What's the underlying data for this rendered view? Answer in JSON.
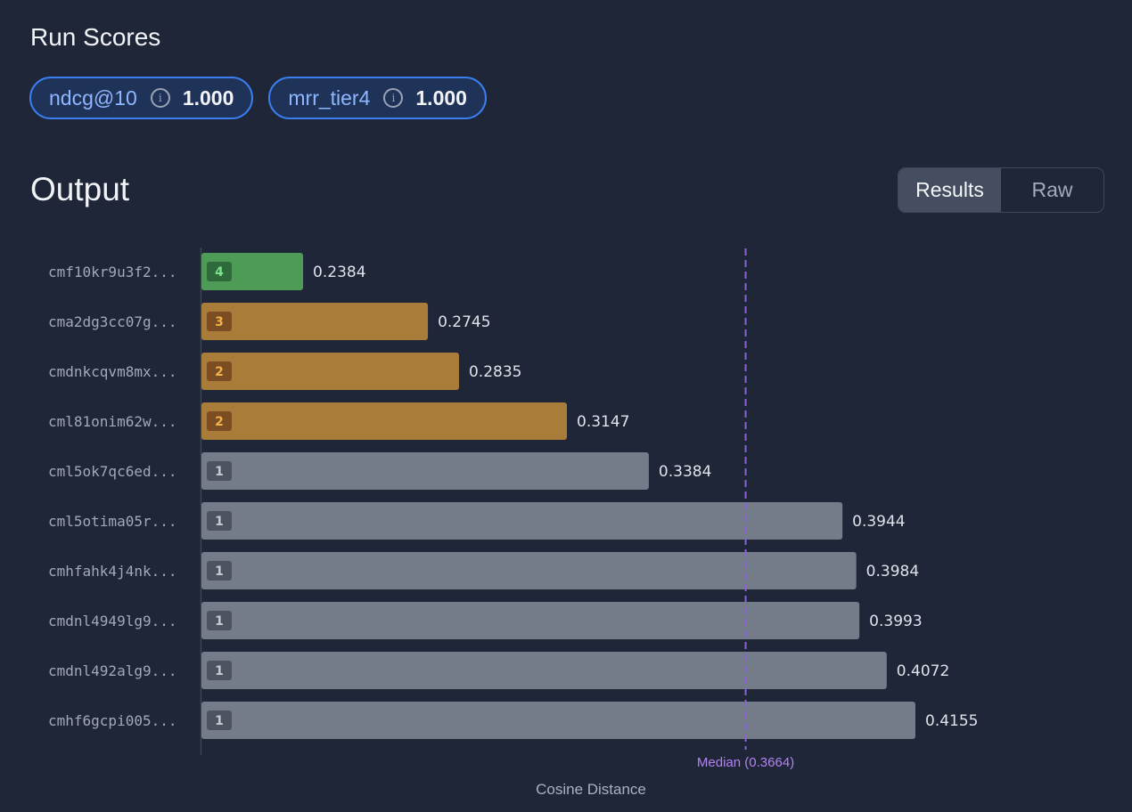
{
  "run_scores": {
    "title": "Run Scores",
    "metrics": [
      {
        "name": "ndcg@10",
        "value": "1.000",
        "icon": "info-icon"
      },
      {
        "name": "mrr_tier4",
        "value": "1.000",
        "icon": "info-icon"
      }
    ]
  },
  "output": {
    "title": "Output",
    "tabs": [
      {
        "label": "Results",
        "active": true
      },
      {
        "label": "Raw",
        "active": false
      }
    ]
  },
  "colors": {
    "tier4": "#4e9a57",
    "tier3": "#a97c3a",
    "tier2": "#a97c3a",
    "tier1": "#757c89",
    "median": "#8a63d2",
    "accent": "#3b7ef0"
  },
  "chart_data": {
    "type": "bar",
    "orientation": "horizontal",
    "categories": [
      "cmf10kr9u3f2...",
      "cma2dg3cc07g...",
      "cmdnkcqvm8mx...",
      "cml81onim62w...",
      "cml5ok7qc6ed...",
      "cml5otima05r...",
      "cmhfahk4j4nk...",
      "cmdnl4949lg9...",
      "cmdnl492alg9...",
      "cmhf6gcpi005..."
    ],
    "values": [
      0.2384,
      0.2745,
      0.2835,
      0.3147,
      0.3384,
      0.3944,
      0.3984,
      0.3993,
      0.4072,
      0.4155
    ],
    "value_labels": [
      "0.2384",
      "0.2745",
      "0.2835",
      "0.3147",
      "0.3384",
      "0.3944",
      "0.3984",
      "0.3993",
      "0.4072",
      "0.4155"
    ],
    "tiers": [
      4,
      3,
      2,
      2,
      1,
      1,
      1,
      1,
      1,
      1
    ],
    "xlabel": "Cosine Distance",
    "xlim": [
      0.209,
      0.4155
    ],
    "median": {
      "value": 0.3664,
      "label": "Median (0.3664)"
    },
    "grid": false
  }
}
